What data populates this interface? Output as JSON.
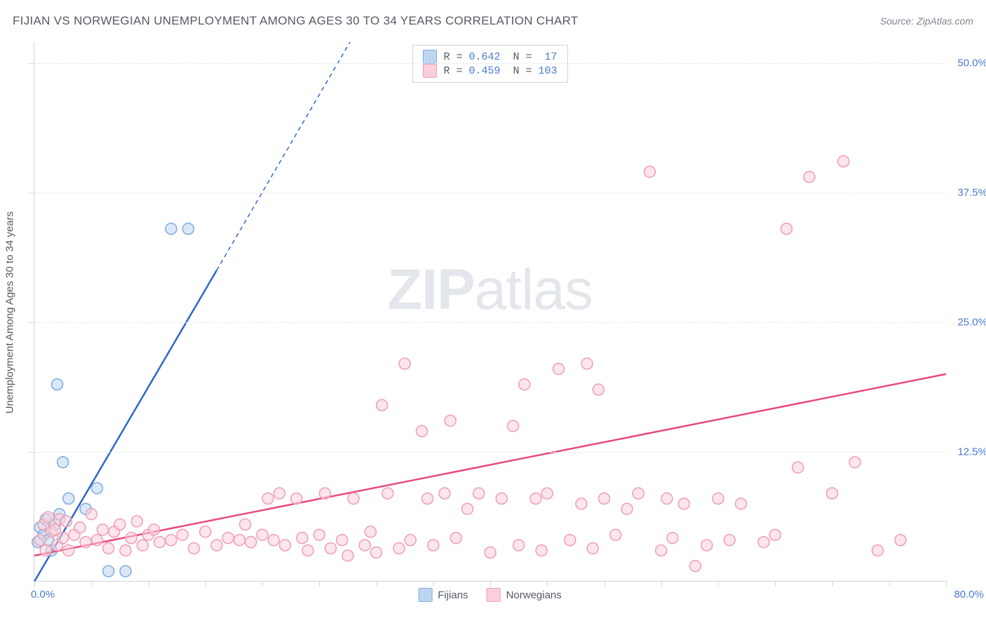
{
  "title": "FIJIAN VS NORWEGIAN UNEMPLOYMENT AMONG AGES 30 TO 34 YEARS CORRELATION CHART",
  "source_label": "Source: ZipAtlas.com",
  "watermark": {
    "bold": "ZIP",
    "light": "atlas"
  },
  "chart": {
    "type": "scatter",
    "ylabel": "Unemployment Among Ages 30 to 34 years",
    "xlim": [
      0,
      80
    ],
    "ylim": [
      0,
      52
    ],
    "x_tick_positions": [
      0,
      5,
      10,
      15,
      20,
      25,
      30,
      35,
      40,
      45,
      50,
      55,
      60,
      65,
      70,
      75,
      80
    ],
    "y_tick_positions": [
      12.5,
      25.0,
      37.5,
      50.0
    ],
    "y_tick_labels": [
      "12.5%",
      "25.0%",
      "37.5%",
      "50.0%"
    ],
    "x_min_label": "0.0%",
    "x_max_label": "80.0%",
    "background_color": "#ffffff",
    "grid_color": "#e3e6ea",
    "axis_color": "#cfd4da",
    "tick_label_color": "#4a7bd0",
    "marker_radius": 8,
    "marker_stroke_width": 1.5,
    "trend_line_width": 2.5,
    "series": [
      {
        "name": "Fijians",
        "fill": "#bcd6f2",
        "stroke": "#7eabde",
        "trend_color": "#2f67c9",
        "R": 0.642,
        "N": 17,
        "trend": {
          "x1": 0,
          "y1": 0,
          "x2": 16,
          "y2": 30,
          "x2_ext": 27.7,
          "y2_ext": 52
        },
        "points": [
          [
            0.3,
            3.8
          ],
          [
            0.5,
            5.2
          ],
          [
            0.8,
            4.5
          ],
          [
            1.0,
            6.0
          ],
          [
            1.2,
            4.0
          ],
          [
            1.5,
            3.0
          ],
          [
            1.8,
            5.5
          ],
          [
            2.0,
            19.0
          ],
          [
            2.2,
            6.5
          ],
          [
            2.5,
            11.5
          ],
          [
            3.0,
            8.0
          ],
          [
            4.5,
            7.0
          ],
          [
            5.5,
            9.0
          ],
          [
            6.5,
            1.0
          ],
          [
            8.0,
            1.0
          ],
          [
            12.0,
            34.0
          ],
          [
            13.5,
            34.0
          ]
        ]
      },
      {
        "name": "Norwegians",
        "fill": "#f9cfda",
        "stroke": "#ef9db5",
        "trend_color": "#e84a7a",
        "R": 0.459,
        "N": 103,
        "trend": {
          "x1": 0,
          "y1": 2.5,
          "x2": 80,
          "y2": 20.0
        },
        "points": [
          [
            0.5,
            4.0
          ],
          [
            0.8,
            5.5
          ],
          [
            1.0,
            3.0
          ],
          [
            1.2,
            6.2
          ],
          [
            1.5,
            4.8
          ],
          [
            1.8,
            5.0
          ],
          [
            2.0,
            3.5
          ],
          [
            2.2,
            6.0
          ],
          [
            2.5,
            4.2
          ],
          [
            2.8,
            5.8
          ],
          [
            3.0,
            3.0
          ],
          [
            3.5,
            4.5
          ],
          [
            4.0,
            5.2
          ],
          [
            4.5,
            3.8
          ],
          [
            5.0,
            6.5
          ],
          [
            5.5,
            4.0
          ],
          [
            6.0,
            5.0
          ],
          [
            6.5,
            3.2
          ],
          [
            7.0,
            4.8
          ],
          [
            7.5,
            5.5
          ],
          [
            8.0,
            3.0
          ],
          [
            8.5,
            4.2
          ],
          [
            9.0,
            5.8
          ],
          [
            9.5,
            3.5
          ],
          [
            10.0,
            4.5
          ],
          [
            10.5,
            5.0
          ],
          [
            11.0,
            3.8
          ],
          [
            12.0,
            4.0
          ],
          [
            13.0,
            4.5
          ],
          [
            14.0,
            3.2
          ],
          [
            15.0,
            4.8
          ],
          [
            16.0,
            3.5
          ],
          [
            17.0,
            4.2
          ],
          [
            18.0,
            4.0
          ],
          [
            18.5,
            5.5
          ],
          [
            19.0,
            3.8
          ],
          [
            20.0,
            4.5
          ],
          [
            20.5,
            8.0
          ],
          [
            21.0,
            4.0
          ],
          [
            21.5,
            8.5
          ],
          [
            22.0,
            3.5
          ],
          [
            23.0,
            8.0
          ],
          [
            23.5,
            4.2
          ],
          [
            24.0,
            3.0
          ],
          [
            25.0,
            4.5
          ],
          [
            25.5,
            8.5
          ],
          [
            26.0,
            3.2
          ],
          [
            27.0,
            4.0
          ],
          [
            27.5,
            2.5
          ],
          [
            28.0,
            8.0
          ],
          [
            29.0,
            3.5
          ],
          [
            29.5,
            4.8
          ],
          [
            30.0,
            2.8
          ],
          [
            30.5,
            17.0
          ],
          [
            31.0,
            8.5
          ],
          [
            32.0,
            3.2
          ],
          [
            32.5,
            21.0
          ],
          [
            33.0,
            4.0
          ],
          [
            34.0,
            14.5
          ],
          [
            34.5,
            8.0
          ],
          [
            35.0,
            3.5
          ],
          [
            36.0,
            8.5
          ],
          [
            36.5,
            15.5
          ],
          [
            37.0,
            4.2
          ],
          [
            38.0,
            7.0
          ],
          [
            39.0,
            8.5
          ],
          [
            40.0,
            2.8
          ],
          [
            41.0,
            8.0
          ],
          [
            42.0,
            15.0
          ],
          [
            42.5,
            3.5
          ],
          [
            43.0,
            19.0
          ],
          [
            44.0,
            8.0
          ],
          [
            44.5,
            3.0
          ],
          [
            45.0,
            8.5
          ],
          [
            46.0,
            20.5
          ],
          [
            47.0,
            4.0
          ],
          [
            48.0,
            7.5
          ],
          [
            48.5,
            21.0
          ],
          [
            49.0,
            3.2
          ],
          [
            49.5,
            18.5
          ],
          [
            50.0,
            8.0
          ],
          [
            51.0,
            4.5
          ],
          [
            52.0,
            7.0
          ],
          [
            53.0,
            8.5
          ],
          [
            54.0,
            39.5
          ],
          [
            55.0,
            3.0
          ],
          [
            55.5,
            8.0
          ],
          [
            56.0,
            4.2
          ],
          [
            57.0,
            7.5
          ],
          [
            58.0,
            1.5
          ],
          [
            59.0,
            3.5
          ],
          [
            60.0,
            8.0
          ],
          [
            61.0,
            4.0
          ],
          [
            62.0,
            7.5
          ],
          [
            64.0,
            3.8
          ],
          [
            65.0,
            4.5
          ],
          [
            66.0,
            34.0
          ],
          [
            67.0,
            11.0
          ],
          [
            68.0,
            39.0
          ],
          [
            70.0,
            8.5
          ],
          [
            71.0,
            40.5
          ],
          [
            72.0,
            11.5
          ],
          [
            74.0,
            3.0
          ],
          [
            76.0,
            4.0
          ]
        ]
      }
    ],
    "legend_top": {
      "rows": [
        {
          "swatch_fill": "#bcd6f2",
          "swatch_stroke": "#7eabde",
          "r_label": "R = ",
          "r_val": "0.642",
          "n_label": "  N = ",
          "n_val": " 17"
        },
        {
          "swatch_fill": "#f9cfda",
          "swatch_stroke": "#ef9db5",
          "r_label": "R = ",
          "r_val": "0.459",
          "n_label": "  N = ",
          "n_val": "103"
        }
      ]
    },
    "legend_bottom": [
      {
        "label": "Fijians",
        "fill": "#bcd6f2",
        "stroke": "#7eabde"
      },
      {
        "label": "Norwegians",
        "fill": "#f9cfda",
        "stroke": "#ef9db5"
      }
    ]
  }
}
